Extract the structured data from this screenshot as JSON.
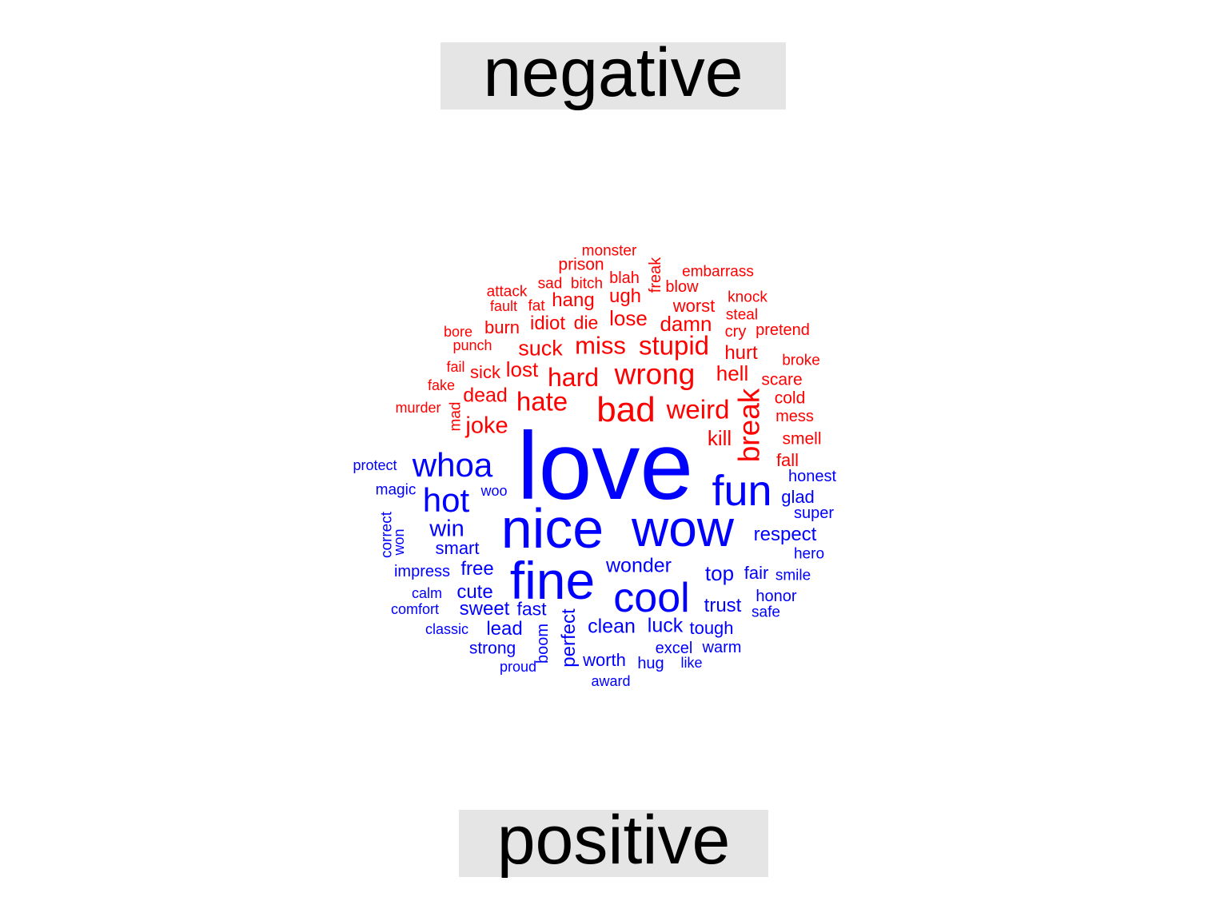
{
  "labels": {
    "negative": "negative",
    "positive": "positive"
  },
  "colors": {
    "negative": "#ff0000",
    "positive": "#0000ff",
    "label_bg": "#e5e5e5"
  },
  "words": [
    {
      "text": "monster",
      "sentiment": "negative"
    },
    {
      "text": "freak",
      "sentiment": "negative",
      "vertical": true
    },
    {
      "text": "prison",
      "sentiment": "negative"
    },
    {
      "text": "embarrass",
      "sentiment": "negative"
    },
    {
      "text": "sad",
      "sentiment": "negative"
    },
    {
      "text": "bitch",
      "sentiment": "negative"
    },
    {
      "text": "blah",
      "sentiment": "negative"
    },
    {
      "text": "blow",
      "sentiment": "negative"
    },
    {
      "text": "attack",
      "sentiment": "negative"
    },
    {
      "text": "knock",
      "sentiment": "negative"
    },
    {
      "text": "hang",
      "sentiment": "negative"
    },
    {
      "text": "ugh",
      "sentiment": "negative"
    },
    {
      "text": "fault",
      "sentiment": "negative"
    },
    {
      "text": "fat",
      "sentiment": "negative"
    },
    {
      "text": "worst",
      "sentiment": "negative"
    },
    {
      "text": "steal",
      "sentiment": "negative"
    },
    {
      "text": "lose",
      "sentiment": "negative"
    },
    {
      "text": "idiot",
      "sentiment": "negative"
    },
    {
      "text": "die",
      "sentiment": "negative"
    },
    {
      "text": "damn",
      "sentiment": "negative"
    },
    {
      "text": "burn",
      "sentiment": "negative"
    },
    {
      "text": "bore",
      "sentiment": "negative"
    },
    {
      "text": "cry",
      "sentiment": "negative"
    },
    {
      "text": "pretend",
      "sentiment": "negative"
    },
    {
      "text": "punch",
      "sentiment": "negative"
    },
    {
      "text": "suck",
      "sentiment": "negative"
    },
    {
      "text": "miss",
      "sentiment": "negative"
    },
    {
      "text": "stupid",
      "sentiment": "negative"
    },
    {
      "text": "hurt",
      "sentiment": "negative"
    },
    {
      "text": "broke",
      "sentiment": "negative"
    },
    {
      "text": "fail",
      "sentiment": "negative"
    },
    {
      "text": "sick",
      "sentiment": "negative"
    },
    {
      "text": "lost",
      "sentiment": "negative"
    },
    {
      "text": "hard",
      "sentiment": "negative"
    },
    {
      "text": "wrong",
      "sentiment": "negative"
    },
    {
      "text": "hell",
      "sentiment": "negative"
    },
    {
      "text": "scare",
      "sentiment": "negative"
    },
    {
      "text": "fake",
      "sentiment": "negative"
    },
    {
      "text": "dead",
      "sentiment": "negative"
    },
    {
      "text": "cold",
      "sentiment": "negative"
    },
    {
      "text": "hate",
      "sentiment": "negative"
    },
    {
      "text": "bad",
      "sentiment": "negative"
    },
    {
      "text": "break",
      "sentiment": "negative",
      "vertical": true
    },
    {
      "text": "murder",
      "sentiment": "negative"
    },
    {
      "text": "weird",
      "sentiment": "negative"
    },
    {
      "text": "mess",
      "sentiment": "negative"
    },
    {
      "text": "mad",
      "sentiment": "negative",
      "vertical": true
    },
    {
      "text": "joke",
      "sentiment": "negative"
    },
    {
      "text": "kill",
      "sentiment": "negative"
    },
    {
      "text": "smell",
      "sentiment": "negative"
    },
    {
      "text": "fall",
      "sentiment": "negative"
    },
    {
      "text": "love",
      "sentiment": "positive"
    },
    {
      "text": "protect",
      "sentiment": "positive"
    },
    {
      "text": "whoa",
      "sentiment": "positive"
    },
    {
      "text": "fun",
      "sentiment": "positive"
    },
    {
      "text": "honest",
      "sentiment": "positive"
    },
    {
      "text": "magic",
      "sentiment": "positive"
    },
    {
      "text": "woo",
      "sentiment": "positive"
    },
    {
      "text": "hot",
      "sentiment": "positive"
    },
    {
      "text": "glad",
      "sentiment": "positive"
    },
    {
      "text": "super",
      "sentiment": "positive"
    },
    {
      "text": "correct",
      "sentiment": "positive",
      "vertical": true
    },
    {
      "text": "nice",
      "sentiment": "positive"
    },
    {
      "text": "wow",
      "sentiment": "positive"
    },
    {
      "text": "win",
      "sentiment": "positive"
    },
    {
      "text": "respect",
      "sentiment": "positive"
    },
    {
      "text": "won",
      "sentiment": "positive",
      "vertical": true
    },
    {
      "text": "smart",
      "sentiment": "positive"
    },
    {
      "text": "hero",
      "sentiment": "positive"
    },
    {
      "text": "impress",
      "sentiment": "positive"
    },
    {
      "text": "free",
      "sentiment": "positive"
    },
    {
      "text": "fine",
      "sentiment": "positive"
    },
    {
      "text": "wonder",
      "sentiment": "positive"
    },
    {
      "text": "top",
      "sentiment": "positive"
    },
    {
      "text": "fair",
      "sentiment": "positive"
    },
    {
      "text": "smile",
      "sentiment": "positive"
    },
    {
      "text": "calm",
      "sentiment": "positive"
    },
    {
      "text": "cute",
      "sentiment": "positive"
    },
    {
      "text": "cool",
      "sentiment": "positive"
    },
    {
      "text": "honor",
      "sentiment": "positive"
    },
    {
      "text": "comfort",
      "sentiment": "positive"
    },
    {
      "text": "sweet",
      "sentiment": "positive"
    },
    {
      "text": "fast",
      "sentiment": "positive"
    },
    {
      "text": "perfect",
      "sentiment": "positive",
      "vertical": true
    },
    {
      "text": "trust",
      "sentiment": "positive"
    },
    {
      "text": "safe",
      "sentiment": "positive"
    },
    {
      "text": "classic",
      "sentiment": "positive"
    },
    {
      "text": "lead",
      "sentiment": "positive"
    },
    {
      "text": "clean",
      "sentiment": "positive"
    },
    {
      "text": "luck",
      "sentiment": "positive"
    },
    {
      "text": "tough",
      "sentiment": "positive"
    },
    {
      "text": "strong",
      "sentiment": "positive"
    },
    {
      "text": "boom",
      "sentiment": "positive",
      "vertical": true
    },
    {
      "text": "excel",
      "sentiment": "positive"
    },
    {
      "text": "warm",
      "sentiment": "positive"
    },
    {
      "text": "worth",
      "sentiment": "positive"
    },
    {
      "text": "hug",
      "sentiment": "positive"
    },
    {
      "text": "like",
      "sentiment": "positive"
    },
    {
      "text": "proud",
      "sentiment": "positive"
    },
    {
      "text": "award",
      "sentiment": "positive"
    }
  ]
}
